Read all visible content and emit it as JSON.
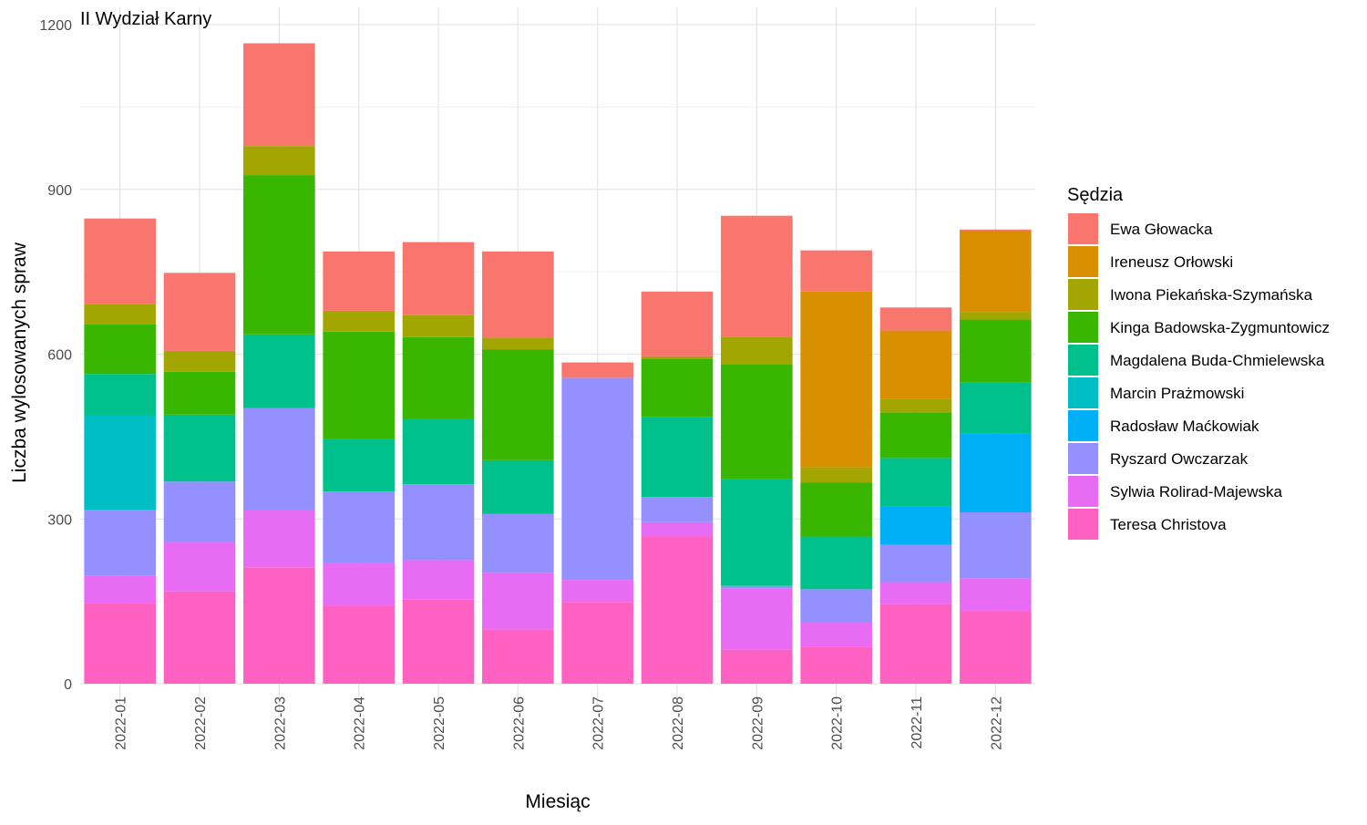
{
  "chart_data": {
    "type": "bar",
    "stacked": true,
    "title": "II Wydział Karny",
    "xlabel": "Miesiąc",
    "ylabel": "Liczba wylosowanych spraw",
    "ylim": [
      0,
      1200
    ],
    "yticks": [
      0,
      300,
      600,
      900,
      1200
    ],
    "grid": true,
    "legend_title": "Sędzia",
    "legend_position": "right",
    "categories": [
      "2022-01",
      "2022-02",
      "2022-03",
      "2022-04",
      "2022-05",
      "2022-06",
      "2022-07",
      "2022-08",
      "2022-09",
      "2022-10",
      "2022-11",
      "2022-12"
    ],
    "series": [
      {
        "name": "Teresa Christova",
        "color": "#FF61C3",
        "values": [
          146,
          168,
          212,
          142,
          153,
          99,
          149,
          268,
          62,
          67,
          145,
          132
        ]
      },
      {
        "name": "Sylwia Rolirad-Majewska",
        "color": "#E76BF3",
        "values": [
          51,
          90,
          105,
          77,
          72,
          103,
          40,
          26,
          111,
          45,
          40,
          60
        ]
      },
      {
        "name": "Ryszard Owczarzak",
        "color": "#9590FF",
        "values": [
          120,
          110,
          185,
          131,
          138,
          107,
          368,
          46,
          5,
          60,
          68,
          120
        ]
      },
      {
        "name": "Radosław Maćkowiak",
        "color": "#00B0F6",
        "values": [
          0,
          0,
          0,
          0,
          0,
          0,
          0,
          0,
          0,
          0,
          70,
          143
        ]
      },
      {
        "name": "Marcin Prażmowski",
        "color": "#00BFC4",
        "values": [
          171,
          0,
          0,
          0,
          0,
          0,
          0,
          0,
          0,
          0,
          0,
          0
        ]
      },
      {
        "name": "Magdalena Buda-Chmielewska",
        "color": "#00C08B",
        "values": [
          76,
          122,
          134,
          95,
          120,
          98,
          0,
          146,
          194,
          96,
          88,
          93
        ]
      },
      {
        "name": "Kinga Badowska-Zygmuntowicz",
        "color": "#39B600",
        "values": [
          90,
          78,
          290,
          196,
          148,
          202,
          0,
          106,
          210,
          98,
          83,
          115
        ]
      },
      {
        "name": "Iwona Piekańska-Szymańska",
        "color": "#A3A500",
        "values": [
          37,
          38,
          53,
          38,
          40,
          21,
          0,
          4,
          50,
          28,
          24,
          14
        ]
      },
      {
        "name": "Ireneusz Orłowski",
        "color": "#D89000",
        "values": [
          0,
          0,
          0,
          0,
          0,
          0,
          0,
          0,
          0,
          320,
          125,
          148
        ]
      },
      {
        "name": "Ewa Głowacka",
        "color": "#F8766D",
        "values": [
          156,
          142,
          187,
          108,
          133,
          157,
          28,
          118,
          220,
          75,
          42,
          2
        ]
      }
    ],
    "legend_order": [
      "Ewa Głowacka",
      "Ireneusz Orłowski",
      "Iwona Piekańska-Szymańska",
      "Kinga Badowska-Zygmuntowicz",
      "Magdalena Buda-Chmielewska",
      "Marcin Prażmowski",
      "Radosław Maćkowiak",
      "Ryszard Owczarzak",
      "Sylwia Rolirad-Majewska",
      "Teresa Christova"
    ]
  }
}
